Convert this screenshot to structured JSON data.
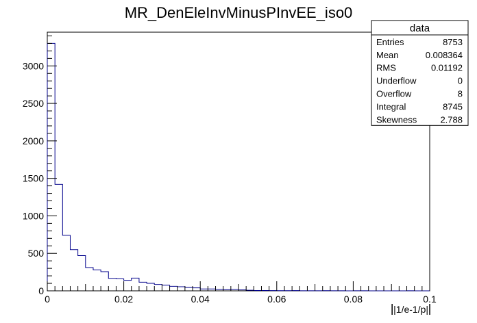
{
  "chart_data": {
    "type": "bar",
    "title": "MR_DenEleInvMinusPInvEE_iso0",
    "xlabel": "|1/e-1/p|",
    "ylabel": "",
    "xlim": [
      0,
      0.1
    ],
    "ylim": [
      0,
      3450
    ],
    "bin_width": 0.002,
    "x_ticks": [
      "0",
      "0.02",
      "0.04",
      "0.06",
      "0.08",
      "0.1"
    ],
    "y_ticks": [
      "0",
      "500",
      "1000",
      "1500",
      "2000",
      "2500",
      "3000"
    ],
    "values": [
      3300,
      1420,
      740,
      550,
      470,
      310,
      280,
      255,
      165,
      160,
      140,
      170,
      115,
      100,
      85,
      75,
      60,
      55,
      45,
      40,
      25,
      25,
      18,
      15,
      18,
      12,
      8,
      5,
      5,
      3,
      2,
      2,
      3,
      1,
      1,
      1,
      2,
      1,
      1,
      0,
      1,
      1,
      0,
      0,
      0,
      0,
      0,
      1,
      0,
      0
    ],
    "series_color": "#00008b",
    "legend": {
      "title": "data",
      "placement": "top-right",
      "rows": [
        {
          "label": "Entries",
          "value": "8753"
        },
        {
          "label": "Mean",
          "value": "0.008364"
        },
        {
          "label": "RMS",
          "value": "0.01192"
        },
        {
          "label": "Underflow",
          "value": "0"
        },
        {
          "label": "Overflow",
          "value": "8"
        },
        {
          "label": "Integral",
          "value": "8745"
        },
        {
          "label": "Skewness",
          "value": "2.788"
        }
      ]
    }
  }
}
